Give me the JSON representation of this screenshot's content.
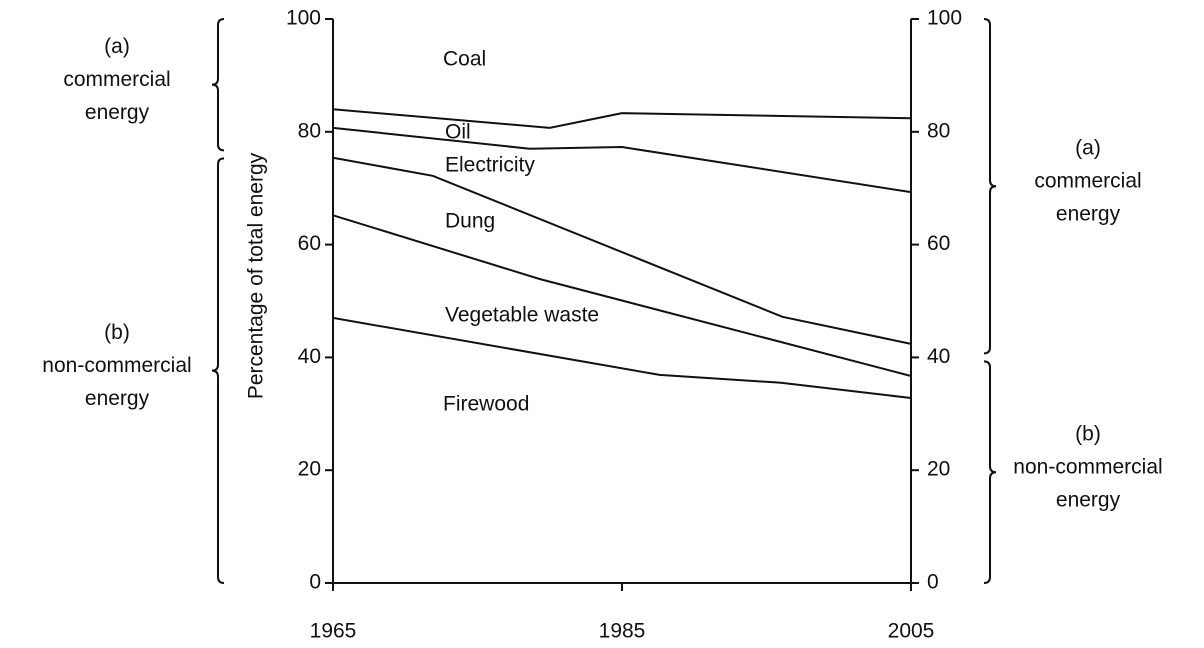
{
  "chart_data": {
    "type": "line",
    "ylabel": "Percentage of total energy",
    "xlim": [
      1965,
      2005
    ],
    "xticks": [
      1965,
      1985,
      2005
    ],
    "ylim": [
      0,
      100
    ],
    "yticks": [
      0,
      20,
      40,
      60,
      80,
      100
    ],
    "y2lim": [
      0,
      100
    ],
    "y2ticks": [
      0,
      20,
      40,
      60,
      80,
      100
    ],
    "color": "#111111",
    "series": [
      {
        "x": [
          1965,
          1980,
          1985,
          2005
        ],
        "values": [
          84.0,
          80.7,
          83.3,
          82.4
        ]
      },
      {
        "x": [
          1965,
          1978.6,
          1985,
          2005
        ],
        "values": [
          80.7,
          77.0,
          77.3,
          69.3
        ]
      },
      {
        "x": [
          1965,
          1971.9,
          1996.1,
          2005
        ],
        "values": [
          75.4,
          72.2,
          47.2,
          42.4
        ]
      },
      {
        "x": [
          1965,
          1979.3,
          2005
        ],
        "values": [
          65.2,
          53.9,
          36.7
        ]
      },
      {
        "x": [
          1965,
          1987.6,
          1996,
          2005
        ],
        "values": [
          47.0,
          36.9,
          35.5,
          32.8
        ]
      }
    ],
    "region_labels": [
      "Coal",
      "Oil",
      "Electricity",
      "Dung",
      "Vegetable waste",
      "Firewood"
    ],
    "brackets": [
      {
        "side": "left",
        "range": [
          76,
          100
        ],
        "lines": [
          "(a)",
          "commercial",
          "energy"
        ]
      },
      {
        "side": "left",
        "range": [
          0,
          76
        ],
        "lines": [
          "(b)",
          "non-commercial",
          "energy"
        ]
      },
      {
        "side": "right",
        "range": [
          40,
          100
        ],
        "lines": [
          "(a)",
          "commercial",
          "energy"
        ]
      },
      {
        "side": "right",
        "range": [
          0,
          40
        ],
        "lines": [
          "(b)",
          "non-commercial",
          "energy"
        ]
      }
    ]
  }
}
